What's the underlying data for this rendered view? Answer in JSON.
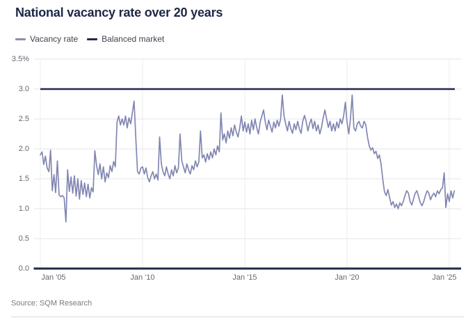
{
  "title": "National vacancy rate over 20 years",
  "legend": {
    "items": [
      {
        "label": "Vacancy rate",
        "color": "#8186b2"
      },
      {
        "label": "Balanced market",
        "color": "#23284a"
      }
    ]
  },
  "source": "Source: SQM Research",
  "colors": {
    "title": "#1d2747",
    "axis_label": "#626872",
    "grid": "#e5e6e9",
    "vertical_grid": "#eeeef1",
    "baseline": "#23284a",
    "vacancy_line": "#8186b2",
    "balanced_line": "#23284a",
    "background": "#ffffff"
  },
  "chart_data": {
    "type": "line",
    "title": "National vacancy rate over 20 years",
    "unit": "percent",
    "x_start": "2005-01",
    "x_step": "month",
    "x_tick_labels": [
      "Jan '05",
      "Jan '10",
      "Jan '15",
      "Jan '20",
      "Jan '25"
    ],
    "x_tick_month_index": [
      0,
      60,
      120,
      180,
      240
    ],
    "y_tick_labels": [
      "3.5%",
      "3.0",
      "2.5",
      "2.0",
      "1.5",
      "1.0",
      "0.5",
      "0.0"
    ],
    "y_tick_values": [
      3.5,
      3.0,
      2.5,
      2.0,
      1.5,
      1.0,
      0.5,
      0.0
    ],
    "ylim": [
      0,
      3.5
    ],
    "grid": true,
    "legend_position": "top-left",
    "source": "Source: SQM Research",
    "series": [
      {
        "name": "Vacancy rate",
        "type": "line",
        "color": "#8186b2",
        "values": [
          1.9,
          1.95,
          1.74,
          1.88,
          1.68,
          1.62,
          1.98,
          1.3,
          1.57,
          1.27,
          1.8,
          1.23,
          1.2,
          1.22,
          1.18,
          0.78,
          1.65,
          1.29,
          1.53,
          1.26,
          1.55,
          1.21,
          1.5,
          1.16,
          1.47,
          1.24,
          1.43,
          1.2,
          1.41,
          1.18,
          1.35,
          1.28,
          1.97,
          1.72,
          1.57,
          1.75,
          1.5,
          1.7,
          1.45,
          1.6,
          1.52,
          1.72,
          1.62,
          1.79,
          1.7,
          2.45,
          2.55,
          2.4,
          2.5,
          2.4,
          2.55,
          2.35,
          2.52,
          2.42,
          2.6,
          2.8,
          2.2,
          1.62,
          1.58,
          1.68,
          1.7,
          1.58,
          1.68,
          1.52,
          1.45,
          1.55,
          1.62,
          1.5,
          1.58,
          1.48,
          2.2,
          1.75,
          1.62,
          1.55,
          1.7,
          1.58,
          1.5,
          1.65,
          1.55,
          1.72,
          1.6,
          1.68,
          2.25,
          1.8,
          1.7,
          1.6,
          1.75,
          1.65,
          1.58,
          1.72,
          1.65,
          1.8,
          1.7,
          1.78,
          2.3,
          1.85,
          1.9,
          1.78,
          1.92,
          1.82,
          1.95,
          1.85,
          2.0,
          1.9,
          2.05,
          1.95,
          2.6,
          2.15,
          2.25,
          2.1,
          2.3,
          2.18,
          2.35,
          2.22,
          2.4,
          2.28,
          2.2,
          2.35,
          2.55,
          2.3,
          2.45,
          2.28,
          2.42,
          2.25,
          2.48,
          2.32,
          2.5,
          2.35,
          2.25,
          2.45,
          2.55,
          2.65,
          2.45,
          2.32,
          2.48,
          2.38,
          2.28,
          2.45,
          2.35,
          2.48,
          2.38,
          2.5,
          2.9,
          2.55,
          2.42,
          2.3,
          2.46,
          2.34,
          2.26,
          2.42,
          2.32,
          2.46,
          2.34,
          2.26,
          2.46,
          2.56,
          2.46,
          2.3,
          2.42,
          2.5,
          2.34,
          2.46,
          2.3,
          2.4,
          2.25,
          2.36,
          2.52,
          2.65,
          2.5,
          2.36,
          2.46,
          2.3,
          2.42,
          2.3,
          2.45,
          2.35,
          2.5,
          2.42,
          2.55,
          2.78,
          2.45,
          2.25,
          2.5,
          2.9,
          2.35,
          2.3,
          2.42,
          2.46,
          2.38,
          2.35,
          2.46,
          2.4,
          2.2,
          2.05,
          1.98,
          2.02,
          1.92,
          1.96,
          1.84,
          1.9,
          1.74,
          1.48,
          1.28,
          1.22,
          1.32,
          1.18,
          1.06,
          1.12,
          1.02,
          1.08,
          1.0,
          1.1,
          1.05,
          1.12,
          1.22,
          1.3,
          1.26,
          1.12,
          1.06,
          1.16,
          1.26,
          1.3,
          1.2,
          1.1,
          1.05,
          1.12,
          1.22,
          1.3,
          1.26,
          1.15,
          1.22,
          1.26,
          1.2,
          1.3,
          1.25,
          1.32,
          1.35,
          1.6,
          1.02,
          1.25,
          1.12,
          1.3,
          1.18,
          1.3
        ]
      },
      {
        "name": "Balanced market",
        "type": "horizontal-line",
        "color": "#23284a",
        "value": 3.0
      }
    ]
  }
}
